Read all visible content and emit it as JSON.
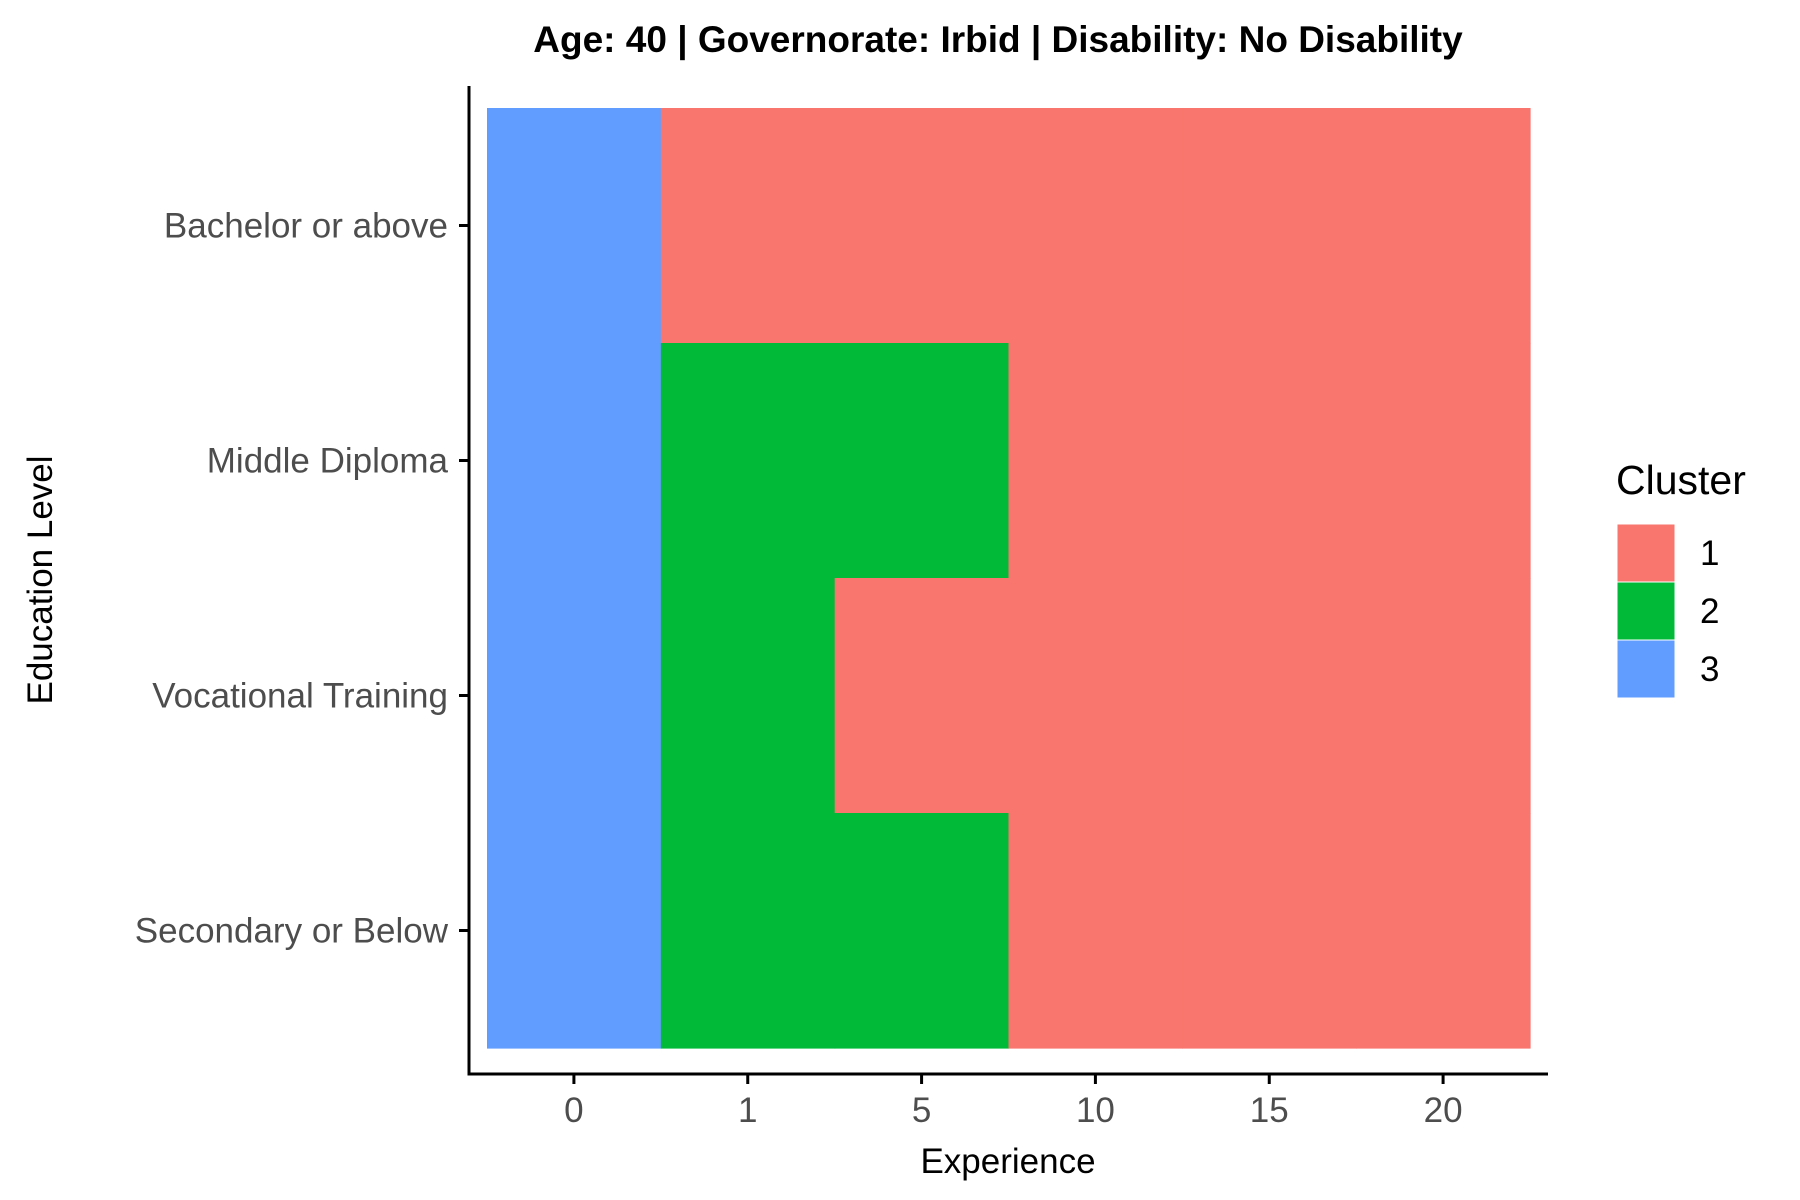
{
  "chart_data": {
    "type": "heatmap",
    "title": "Age: 40 | Governorate: Irbid | Disability: No Disability",
    "xlabel": "Experience",
    "ylabel": "Education Level",
    "x_categories": [
      "0",
      "1",
      "5",
      "10",
      "15",
      "20"
    ],
    "y_categories": [
      "Bachelor or above",
      "Middle Diploma",
      "Vocational Training",
      "Secondary or Below"
    ],
    "cells": [
      [
        3,
        1,
        1,
        1,
        1,
        1
      ],
      [
        3,
        2,
        2,
        1,
        1,
        1
      ],
      [
        3,
        2,
        1,
        1,
        1,
        1
      ],
      [
        3,
        2,
        2,
        1,
        1,
        1
      ]
    ],
    "grid": false,
    "legend": {
      "title": "Cluster",
      "position": "right",
      "entries": [
        {
          "label": "1",
          "color": "#F8766D"
        },
        {
          "label": "2",
          "color": "#00BA38"
        },
        {
          "label": "3",
          "color": "#619CFF"
        }
      ]
    }
  }
}
